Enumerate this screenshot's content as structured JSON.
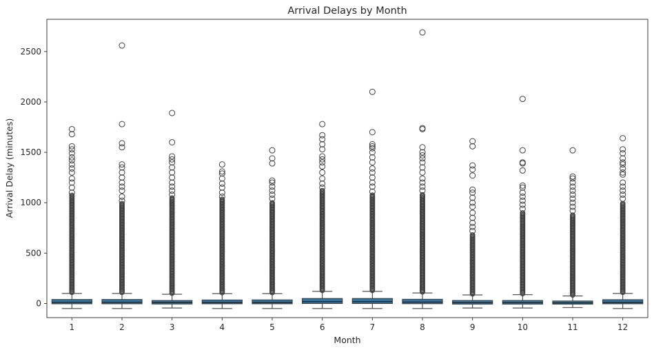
{
  "chart_data": {
    "type": "box",
    "title": "Arrival Delays by Month",
    "xlabel": "Month",
    "ylabel": "Arrival Delay (minutes)",
    "ylim": [
      -140,
      2820
    ],
    "yticks": [
      0,
      500,
      1000,
      1500,
      2000,
      2500
    ],
    "grid": false,
    "legend": "none",
    "colors": {
      "box": "#3274a1",
      "median": "#1f1f1f",
      "outline": "#3f3f3f",
      "outlier": "#3f3f3f"
    },
    "categories": [
      "1",
      "2",
      "3",
      "4",
      "5",
      "6",
      "7",
      "8",
      "9",
      "10",
      "11",
      "12"
    ],
    "boxes": [
      {
        "category": "1",
        "whisker_low": -50,
        "q1": -3,
        "median": 12,
        "q3": 40,
        "whisker_high": 100,
        "dense_outliers_to": 1080,
        "outliers": [
          1100,
          1150,
          1200,
          1240,
          1300,
          1340,
          1380,
          1420,
          1450,
          1490,
          1530,
          1560,
          1680,
          1730
        ]
      },
      {
        "category": "2",
        "whisker_low": -50,
        "q1": -3,
        "median": 12,
        "q3": 40,
        "whisker_high": 100,
        "dense_outliers_to": 1000,
        "outliers": [
          1020,
          1060,
          1120,
          1160,
          1200,
          1250,
          1300,
          1350,
          1380,
          1550,
          1590,
          1780,
          2560
        ]
      },
      {
        "category": "3",
        "whisker_low": -45,
        "q1": -5,
        "median": 10,
        "q3": 30,
        "whisker_high": 92,
        "dense_outliers_to": 1050,
        "outliers": [
          1080,
          1120,
          1160,
          1200,
          1250,
          1300,
          1350,
          1400,
          1430,
          1460,
          1600,
          1890
        ]
      },
      {
        "category": "4",
        "whisker_low": -50,
        "q1": -3,
        "median": 10,
        "q3": 35,
        "whisker_high": 98,
        "dense_outliers_to": 1040,
        "outliers": [
          1060,
          1100,
          1150,
          1190,
          1240,
          1290,
          1310,
          1380
        ]
      },
      {
        "category": "5",
        "whisker_low": -50,
        "q1": -3,
        "median": 10,
        "q3": 36,
        "whisker_high": 98,
        "dense_outliers_to": 1000,
        "outliers": [
          1040,
          1080,
          1120,
          1160,
          1200,
          1220,
          1390,
          1440,
          1520
        ]
      },
      {
        "category": "6",
        "whisker_low": -50,
        "q1": 0,
        "median": 18,
        "q3": 50,
        "whisker_high": 120,
        "dense_outliers_to": 1120,
        "outliers": [
          1150,
          1190,
          1240,
          1300,
          1360,
          1400,
          1430,
          1460,
          1530,
          1580,
          1630,
          1670,
          1780
        ]
      },
      {
        "category": "7",
        "whisker_low": -50,
        "q1": 0,
        "median": 18,
        "q3": 50,
        "whisker_high": 120,
        "dense_outliers_to": 1080,
        "outliers": [
          1110,
          1160,
          1200,
          1250,
          1300,
          1340,
          1400,
          1450,
          1500,
          1540,
          1560,
          1580,
          1700,
          2100
        ]
      },
      {
        "category": "8",
        "whisker_low": -50,
        "q1": -2,
        "median": 14,
        "q3": 42,
        "whisker_high": 105,
        "dense_outliers_to": 1080,
        "outliers": [
          1120,
          1160,
          1200,
          1240,
          1300,
          1350,
          1400,
          1440,
          1470,
          1500,
          1550,
          1730,
          1740,
          2690
        ]
      },
      {
        "category": "9",
        "whisker_low": -45,
        "q1": -6,
        "median": 8,
        "q3": 30,
        "whisker_high": 85,
        "dense_outliers_to": 680,
        "outliers": [
          720,
          760,
          800,
          850,
          900,
          960,
          1000,
          1050,
          1100,
          1130,
          1270,
          1330,
          1370,
          1560,
          1610
        ]
      },
      {
        "category": "10",
        "whisker_low": -45,
        "q1": -6,
        "median": 8,
        "q3": 30,
        "whisker_high": 88,
        "dense_outliers_to": 900,
        "outliers": [
          940,
          980,
          1020,
          1060,
          1100,
          1150,
          1170,
          1320,
          1390,
          1400,
          1520,
          2030
        ]
      },
      {
        "category": "11",
        "whisker_low": -40,
        "q1": -6,
        "median": 6,
        "q3": 25,
        "whisker_high": 75,
        "dense_outliers_to": 880,
        "outliers": [
          920,
          960,
          1000,
          1040,
          1080,
          1120,
          1160,
          1200,
          1240,
          1260,
          1520
        ]
      },
      {
        "category": "12",
        "whisker_low": -50,
        "q1": -3,
        "median": 10,
        "q3": 38,
        "whisker_high": 100,
        "dense_outliers_to": 1000,
        "outliers": [
          1040,
          1080,
          1120,
          1160,
          1200,
          1280,
          1300,
          1340,
          1380,
          1400,
          1440,
          1490,
          1530,
          1640
        ]
      }
    ]
  }
}
